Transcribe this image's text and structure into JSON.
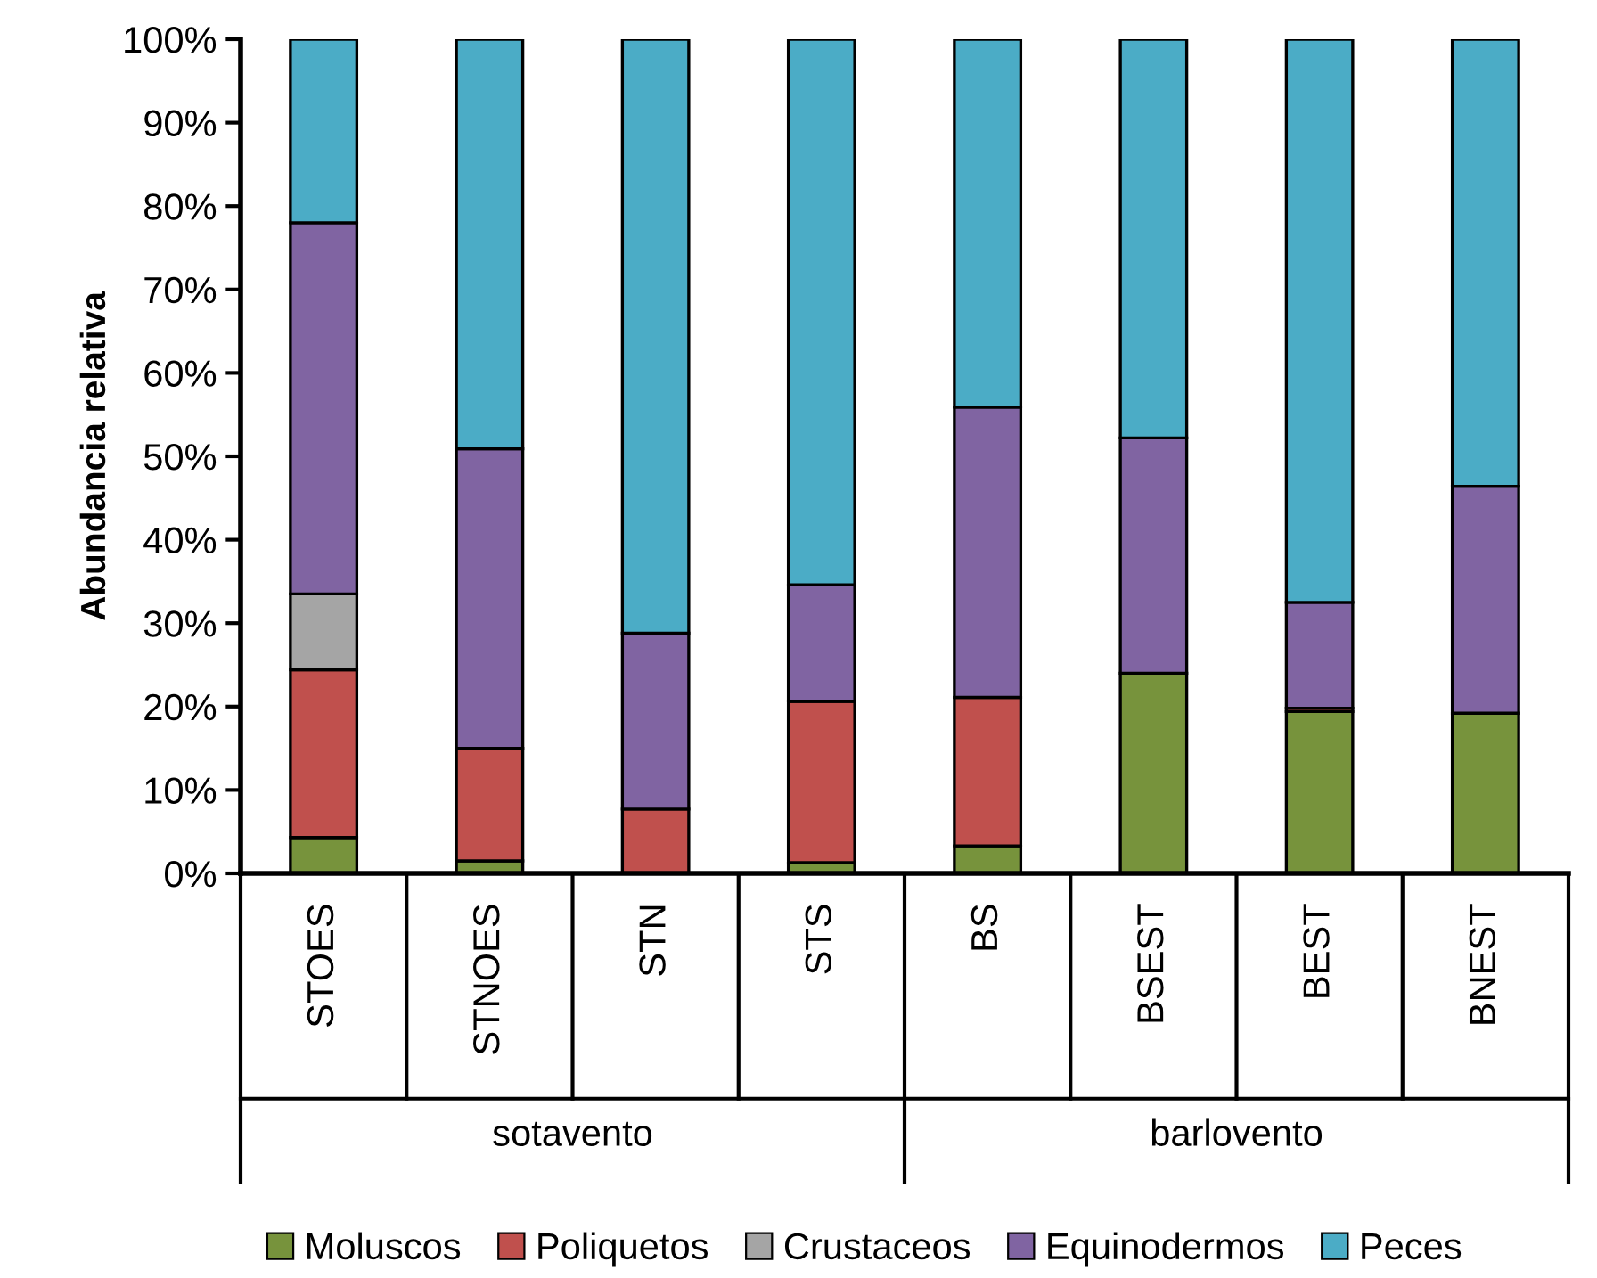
{
  "chart_data": {
    "type": "bar",
    "stacked": true,
    "ylabel": "Abundancia relativa",
    "categories": [
      "STOES",
      "STNOES",
      "STN",
      "STS",
      "BS",
      "BSEST",
      "BEST",
      "BNEST"
    ],
    "series": [
      {
        "name": "Moluscos",
        "color": "#77933c",
        "values": [
          4.3,
          1.5,
          null,
          1.3,
          3.3,
          24.0,
          19.4,
          19.2
        ]
      },
      {
        "name": "Poliquetos",
        "color": "#c0504d",
        "values": [
          20.1,
          13.5,
          7.7,
          19.3,
          17.8,
          0,
          0.4,
          0
        ]
      },
      {
        "name": "Crustaceos",
        "color": "#a5a5a5",
        "values": [
          9.1,
          0,
          0,
          0,
          0,
          0,
          0,
          0
        ]
      },
      {
        "name": "Equinodermos",
        "color": "#8064a2",
        "values": [
          44.5,
          35.9,
          21.1,
          14.0,
          34.8,
          28.2,
          12.7,
          27.2
        ]
      },
      {
        "name": "Peces",
        "color": "#4bacc6",
        "values": [
          22.0,
          49.1,
          71.2,
          65.4,
          44.1,
          47.8,
          67.5,
          53.6
        ]
      }
    ],
    "ylim": [
      0,
      100
    ],
    "yticks": [
      {
        "value": 0,
        "label": "0%"
      },
      {
        "value": 10,
        "label": "10%"
      },
      {
        "value": 20,
        "label": "20%"
      },
      {
        "value": 30,
        "label": "30%"
      },
      {
        "value": 40,
        "label": "40%"
      },
      {
        "value": 50,
        "label": "50%"
      },
      {
        "value": 60,
        "label": "60%"
      },
      {
        "value": 70,
        "label": "70%"
      },
      {
        "value": 80,
        "label": "80%"
      },
      {
        "value": 90,
        "label": "90%"
      },
      {
        "value": 100,
        "label": "100%"
      }
    ],
    "annotations": [
      "sotavento",
      "barlovento"
    ],
    "legend": "bottom",
    "grid": false
  }
}
